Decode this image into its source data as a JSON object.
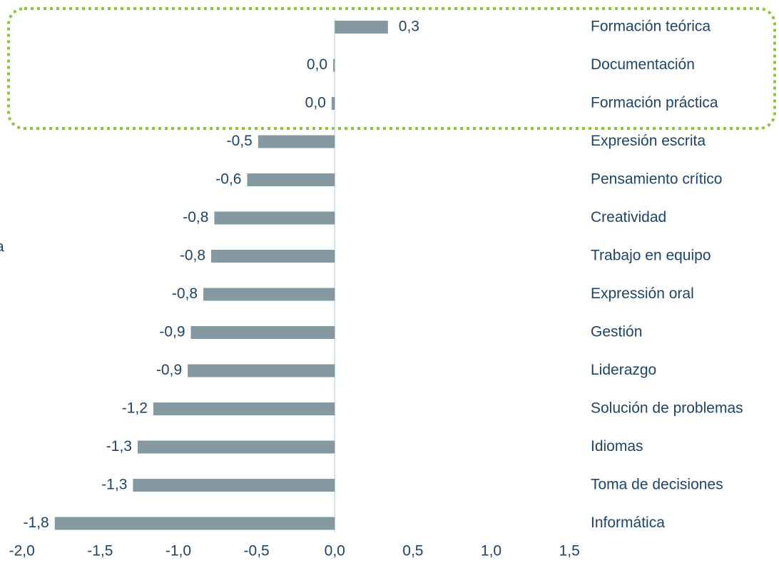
{
  "chart_data": {
    "type": "bar",
    "orientation": "horizontal",
    "annotation": "a",
    "categories": [
      "Formación teórica",
      "Documentación",
      "Formación práctica",
      "Expresión escrita",
      "Pensamiento crítico",
      "Creatividad",
      "Trabajo en equipo",
      "Expressión oral",
      "Gestión",
      "Liderazgo",
      "Solución de problemas",
      "Idiomas",
      "Toma de decisiones",
      "Informática"
    ],
    "values": [
      0.34,
      -0.01,
      -0.02,
      -0.49,
      -0.56,
      -0.77,
      -0.79,
      -0.84,
      -0.92,
      -0.94,
      -1.16,
      -1.26,
      -1.29,
      -1.79
    ],
    "value_labels": [
      "0,3",
      "0,0",
      "0,0",
      "-0,5",
      "-0,6",
      "-0,8",
      "-0,8",
      "-0,8",
      "-0,9",
      "-0,9",
      "-1,2",
      "-1,3",
      "-1,3",
      "-1,8"
    ],
    "color": "#8599a3",
    "xlim": [
      -2.14,
      2.84
    ],
    "xticks": [
      {
        "value": -2,
        "label": "-2,0"
      },
      {
        "value": -1.5,
        "label": "-1,5"
      },
      {
        "value": -1,
        "label": "-1,0"
      },
      {
        "value": -0.5,
        "label": "-0,5"
      },
      {
        "value": 0,
        "label": "0,0"
      },
      {
        "value": 0.5,
        "label": "0,5"
      },
      {
        "value": 1,
        "label": "1,0"
      },
      {
        "value": 1.5,
        "label": "1,5"
      }
    ],
    "grid": false
  }
}
